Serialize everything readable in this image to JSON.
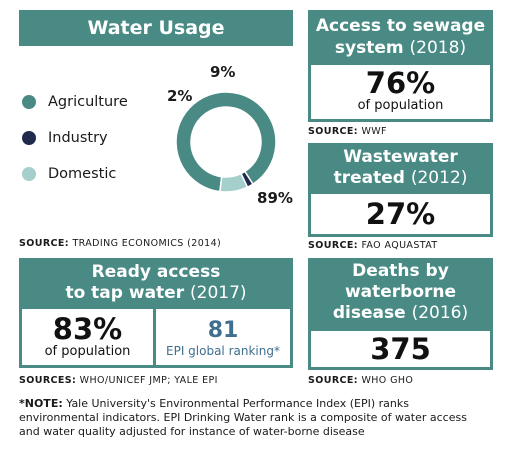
{
  "water_usage": {
    "title": "Water Usage",
    "legend": [
      {
        "label": "Agriculture",
        "color": "#4a8a85"
      },
      {
        "label": "Industry",
        "color": "#1f2a4d"
      },
      {
        "label": "Domestic",
        "color": "#a4cfcb"
      }
    ],
    "source_prefix": "SOURCE:",
    "source": "TRADING ECONOMICS (2014)"
  },
  "chart_data": {
    "type": "pie",
    "title": "Water Usage",
    "categories": [
      "Agriculture",
      "Industry",
      "Domestic"
    ],
    "values": [
      89,
      2,
      9
    ],
    "value_labels": [
      "89%",
      "2%",
      "9%"
    ],
    "colors": [
      "#4a8a85",
      "#1f2a4d",
      "#a4cfcb"
    ],
    "donut": true
  },
  "sewage": {
    "title_line1": "Access to sewage",
    "title_line2": "system",
    "year": "(2018)",
    "value": "76%",
    "caption": "of population",
    "source_prefix": "SOURCE:",
    "source": "WWF"
  },
  "wastewater": {
    "title_line1": "Wastewater",
    "title_line2": "treated",
    "year": "(2012)",
    "value": "27%",
    "source_prefix": "SOURCE:",
    "source": "FAO AQUASTAT"
  },
  "tap_water": {
    "title_line1": "Ready access",
    "title_line2": "to tap water",
    "year": "(2017)",
    "value": "83%",
    "caption": "of population",
    "rank_value": "81",
    "rank_caption": "EPI global ranking*",
    "source_prefix": "SOURCES:",
    "source": "WHO/UNICEF JMP; YALE EPI"
  },
  "deaths": {
    "title_line1": "Deaths by",
    "title_line2": "waterborne",
    "title_line3": "disease",
    "year": "(2016)",
    "value": "375",
    "source_prefix": "SOURCE:",
    "source": "WHO GHO"
  },
  "note": {
    "prefix": "*NOTE:",
    "text": "Yale University's Environmental Performance Index (EPI) ranks environmental indicators. EPI Drinking Water rank is a composite of water access and water quality adjusted for instance of water-borne disease"
  }
}
